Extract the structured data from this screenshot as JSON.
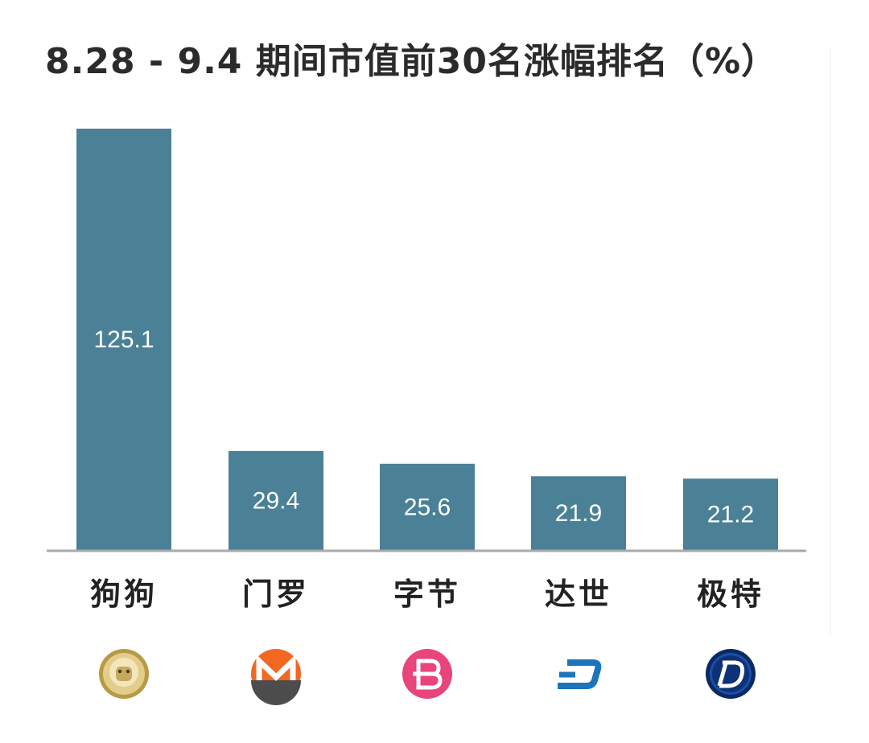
{
  "chart_data": {
    "type": "bar",
    "title": "8.28 - 9.4 期间市值前30名涨幅排名（%）",
    "categories": [
      "狗狗",
      "门罗",
      "字节",
      "达世",
      "极特"
    ],
    "values": [
      125.1,
      29.4,
      25.6,
      21.9,
      21.2
    ],
    "ylim": [
      0,
      125.1
    ],
    "grid": false,
    "legend": "none",
    "bar_color": "#4a8196",
    "label_color": "#ffffff",
    "icons": [
      {
        "name": "dogecoin-icon",
        "color": "#c9a94e"
      },
      {
        "name": "monero-icon",
        "color": "#f26822"
      },
      {
        "name": "bytecoin-icon",
        "color": "#e8457a"
      },
      {
        "name": "dash-icon",
        "color": "#1c75bc"
      },
      {
        "name": "digibyte-icon",
        "color": "#0b2e6e"
      }
    ]
  }
}
